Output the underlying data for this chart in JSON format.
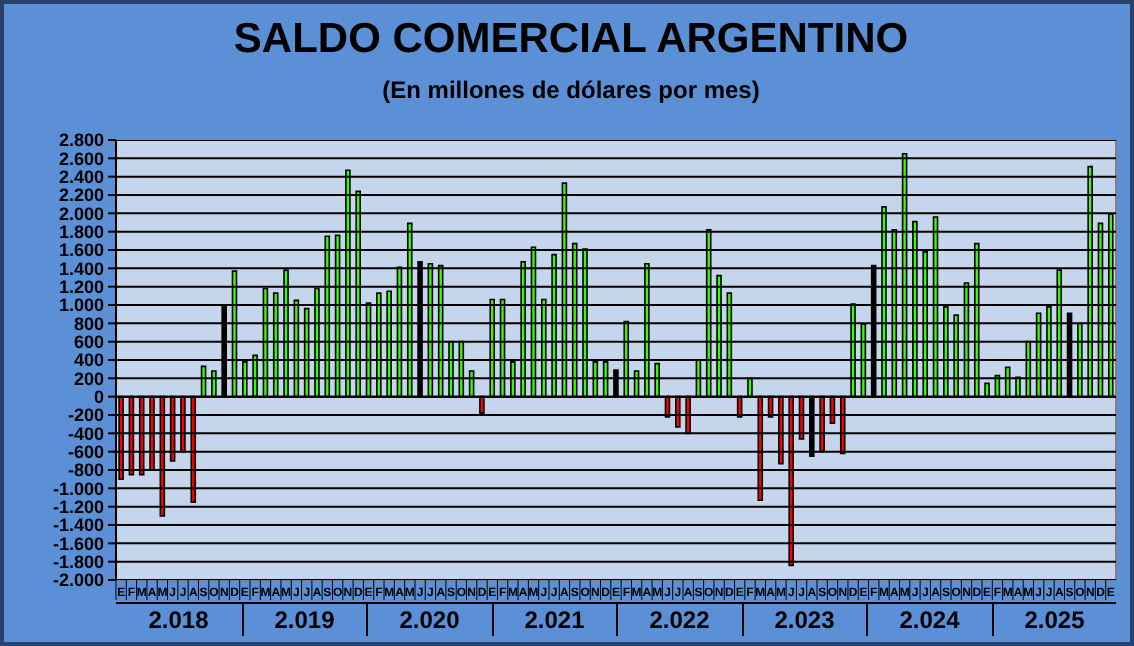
{
  "chart_data": {
    "type": "bar",
    "title": "SALDO COMERCIAL ARGENTINO",
    "subtitle": "(En millones de dólares por mes)",
    "categories": [
      "E",
      "F",
      "M",
      "A",
      "M",
      "J",
      "J",
      "A",
      "S",
      "O",
      "N",
      "D",
      "E",
      "F",
      "M",
      "A",
      "M",
      "J",
      "J",
      "A",
      "S",
      "O",
      "N",
      "D",
      "E",
      "F",
      "M",
      "A",
      "M",
      "J",
      "J",
      "A",
      "S",
      "O",
      "N",
      "D",
      "E",
      "F",
      "M",
      "A",
      "M",
      "J",
      "J",
      "A",
      "S",
      "O",
      "N",
      "D",
      "E",
      "F",
      "M",
      "A",
      "M",
      "J",
      "J",
      "A",
      "S",
      "O",
      "N",
      "D",
      "E",
      "F",
      "M",
      "A",
      "M",
      "J",
      "J",
      "A",
      "S",
      "O",
      "N",
      "D",
      "E",
      "F",
      "M",
      "A",
      "M",
      "J",
      "J",
      "A",
      "S",
      "O",
      "N",
      "D",
      "E",
      "F",
      "M",
      "A",
      "M",
      "J",
      "J",
      "A",
      "S",
      "O",
      "N",
      "D",
      "E"
    ],
    "values": [
      -900,
      -850,
      -850,
      -800,
      -1300,
      -700,
      -600,
      -1150,
      330,
      280,
      1000,
      1370,
      380,
      450,
      1180,
      1130,
      1380,
      1050,
      960,
      1180,
      1750,
      1760,
      2470,
      2240,
      1020,
      1130,
      1150,
      1410,
      1890,
      1470,
      1450,
      1430,
      600,
      600,
      280,
      -180,
      1060,
      1060,
      380,
      1470,
      1630,
      1060,
      1550,
      2330,
      1670,
      1610,
      380,
      380,
      290,
      820,
      280,
      1450,
      360,
      -220,
      -330,
      -400,
      400,
      1820,
      1320,
      1130,
      -220,
      200,
      -1130,
      -220,
      -730,
      -1840,
      -460,
      -650,
      -600,
      -290,
      -620,
      1010,
      790,
      1430,
      2070,
      1820,
      2650,
      1910,
      1580,
      1960,
      980,
      890,
      1240,
      1670,
      145,
      230,
      320,
      210,
      600,
      910,
      980,
      1380,
      910,
      800,
      2510,
      1890,
      1990
    ],
    "colors": [
      "#ff0000",
      "#ff0000",
      "#ff0000",
      "#ff0000",
      "#ff0000",
      "#ff0000",
      "#ff0000",
      "#ff0000",
      "#33ff00",
      "#33ff00",
      "#000000",
      "#33ff00",
      "#33ff00",
      "#33ff00",
      "#33ff00",
      "#33ff00",
      "#33ff00",
      "#33ff00",
      "#33ff00",
      "#33ff00",
      "#33ff00",
      "#33ff00",
      "#33ff00",
      "#33ff00",
      "#33ff00",
      "#33ff00",
      "#33ff00",
      "#33ff00",
      "#33ff00",
      "#000000",
      "#33ff00",
      "#33ff00",
      "#33ff00",
      "#33ff00",
      "#33ff00",
      "#ff0000",
      "#33ff00",
      "#33ff00",
      "#33ff00",
      "#33ff00",
      "#33ff00",
      "#33ff00",
      "#33ff00",
      "#33ff00",
      "#33ff00",
      "#33ff00",
      "#33ff00",
      "#33ff00",
      "#000000",
      "#33ff00",
      "#33ff00",
      "#33ff00",
      "#33ff00",
      "#ff0000",
      "#ff0000",
      "#ff0000",
      "#33ff00",
      "#33ff00",
      "#33ff00",
      "#33ff00",
      "#ff0000",
      "#33ff00",
      "#ff0000",
      "#ff0000",
      "#ff0000",
      "#ff0000",
      "#ff0000",
      "#000000",
      "#ff0000",
      "#ff0000",
      "#ff0000",
      "#33ff00",
      "#33ff00",
      "#000000",
      "#33ff00",
      "#33ff00",
      "#33ff00",
      "#33ff00",
      "#33ff00",
      "#33ff00",
      "#33ff00",
      "#33ff00",
      "#33ff00",
      "#33ff00",
      "#33ff00",
      "#33ff00",
      "#33ff00",
      "#33ff00",
      "#33ff00",
      "#33ff00",
      "#33ff00",
      "#33ff00",
      "#000000",
      "#33ff00",
      "#33ff00",
      "#33ff00",
      "#33ff00"
    ],
    "ylim": [
      -2000,
      2800
    ],
    "yticks": [
      {
        "value": 2800,
        "label": "2.800"
      },
      {
        "value": 2600,
        "label": "2.600"
      },
      {
        "value": 2400,
        "label": "2.400"
      },
      {
        "value": 2200,
        "label": "2.200"
      },
      {
        "value": 2000,
        "label": "2.000"
      },
      {
        "value": 1800,
        "label": "1.800"
      },
      {
        "value": 1600,
        "label": "1.600"
      },
      {
        "value": 1400,
        "label": "1.400"
      },
      {
        "value": 1200,
        "label": "1.200"
      },
      {
        "value": 1000,
        "label": "1.000"
      },
      {
        "value": 800,
        "label": "800"
      },
      {
        "value": 600,
        "label": "600"
      },
      {
        "value": 400,
        "label": "400"
      },
      {
        "value": 200,
        "label": "200"
      },
      {
        "value": 0,
        "label": "0"
      },
      {
        "value": -200,
        "label": "-200"
      },
      {
        "value": -400,
        "label": "-400"
      },
      {
        "value": -600,
        "label": "-600"
      },
      {
        "value": -800,
        "label": "-800"
      },
      {
        "value": -1000,
        "label": "-1.000"
      },
      {
        "value": -1200,
        "label": "-1.200"
      },
      {
        "value": -1400,
        "label": "-1.400"
      },
      {
        "value": -1600,
        "label": "-1.600"
      },
      {
        "value": -1800,
        "label": "-1.800"
      },
      {
        "value": -2000,
        "label": "-2.000"
      }
    ],
    "grid": "y",
    "annotations": [
      "2.018",
      "2.019",
      "2.020",
      "2.021",
      "2.022",
      "2.023",
      "2.024",
      "2.025"
    ]
  }
}
